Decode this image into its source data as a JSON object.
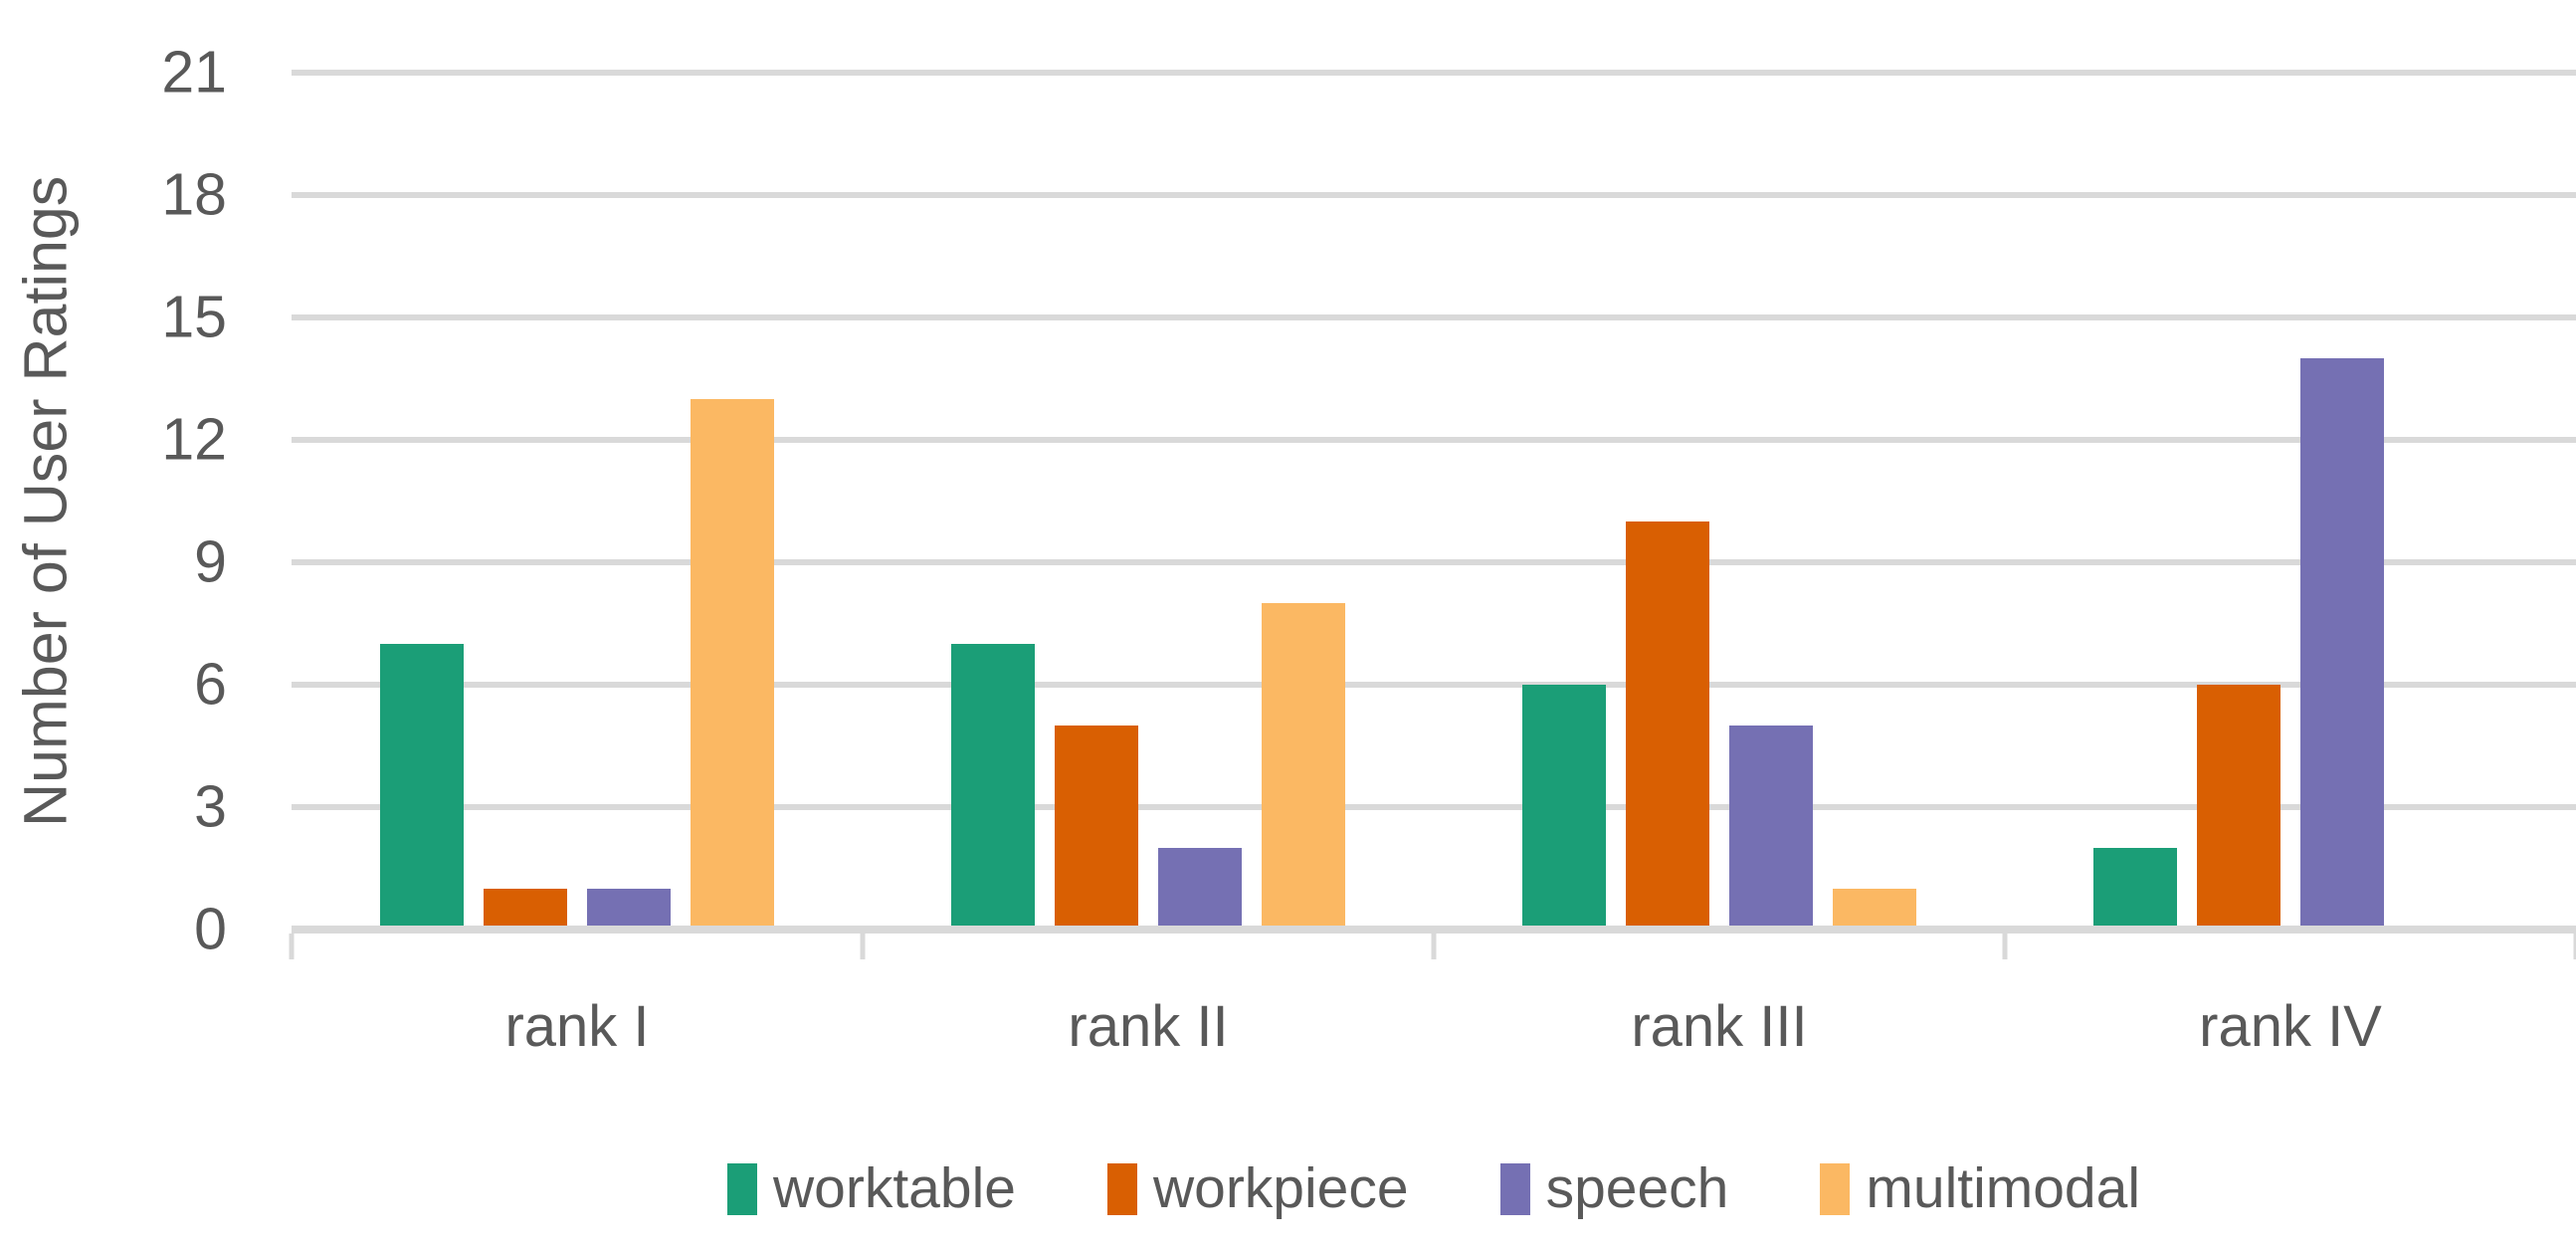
{
  "chart_data": {
    "type": "bar",
    "title": "",
    "ylabel": "Number of User Ratings",
    "xlabel": "",
    "categories": [
      "rank I",
      "rank II",
      "rank III",
      "rank IV"
    ],
    "series": [
      {
        "name": "worktable",
        "color": "#1B9E77",
        "values": [
          7,
          7,
          6,
          2
        ]
      },
      {
        "name": "workpiece",
        "color": "#D95F02",
        "values": [
          1,
          5,
          10,
          6
        ]
      },
      {
        "name": "speech",
        "color": "#7570B3",
        "values": [
          1,
          2,
          5,
          14
        ]
      },
      {
        "name": "multimodal",
        "color": "#FBB863",
        "values": [
          13,
          8,
          1,
          0
        ]
      }
    ],
    "ylim": [
      0,
      21
    ],
    "yticks": [
      0,
      3,
      6,
      9,
      12,
      15,
      18,
      21
    ],
    "grid": "horizontal",
    "legend_position": "bottom",
    "colors": {
      "grid": "#D9D9D9",
      "axis": "#D9D9D9",
      "text": "#595959",
      "background": "#FFFFFF"
    }
  }
}
